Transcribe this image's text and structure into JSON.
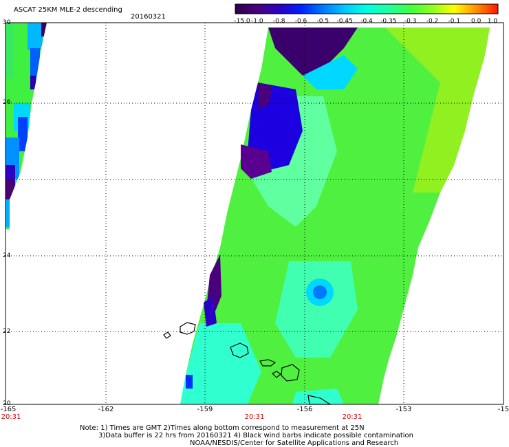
{
  "header": {
    "title": "ASCAT 25KM MLE-2 descending",
    "date": "20160321"
  },
  "colorbar": {
    "ticks": [
      "-15.0",
      "-1.0",
      "-0.8",
      "-0.6",
      "-0.5",
      "-0.45",
      "-0.4",
      "-0.35",
      "-0.3",
      "-0.2",
      "-0.1",
      "0.0",
      "1.0"
    ],
    "colors": [
      "#2a0048",
      "#4a007c",
      "#2c00c4",
      "#0020ff",
      "#0078ff",
      "#00c8ff",
      "#00ffe0",
      "#20ffa0",
      "#40ff40",
      "#90ff20",
      "#ffff00",
      "#ff9000",
      "#ff1800"
    ]
  },
  "axes": {
    "y_ticks": [
      "30",
      "26",
      "24",
      "22",
      "20"
    ],
    "x_ticks": [
      "-165",
      "-162",
      "-159",
      "-156",
      "-153",
      "-15"
    ],
    "time_labels": [
      "20:31",
      "20:31",
      "20:31"
    ]
  },
  "notes": {
    "line1": "Note: 1) Times are GMT 2)Times along bottom correspond to measurement at 25N",
    "line2": "3)Data buffer is 22 hrs from 20160321 4) Black wind barbs indicate possible contamination",
    "line3": "NOAA/NESDIS/Center for Satellite Applications and Research"
  }
}
